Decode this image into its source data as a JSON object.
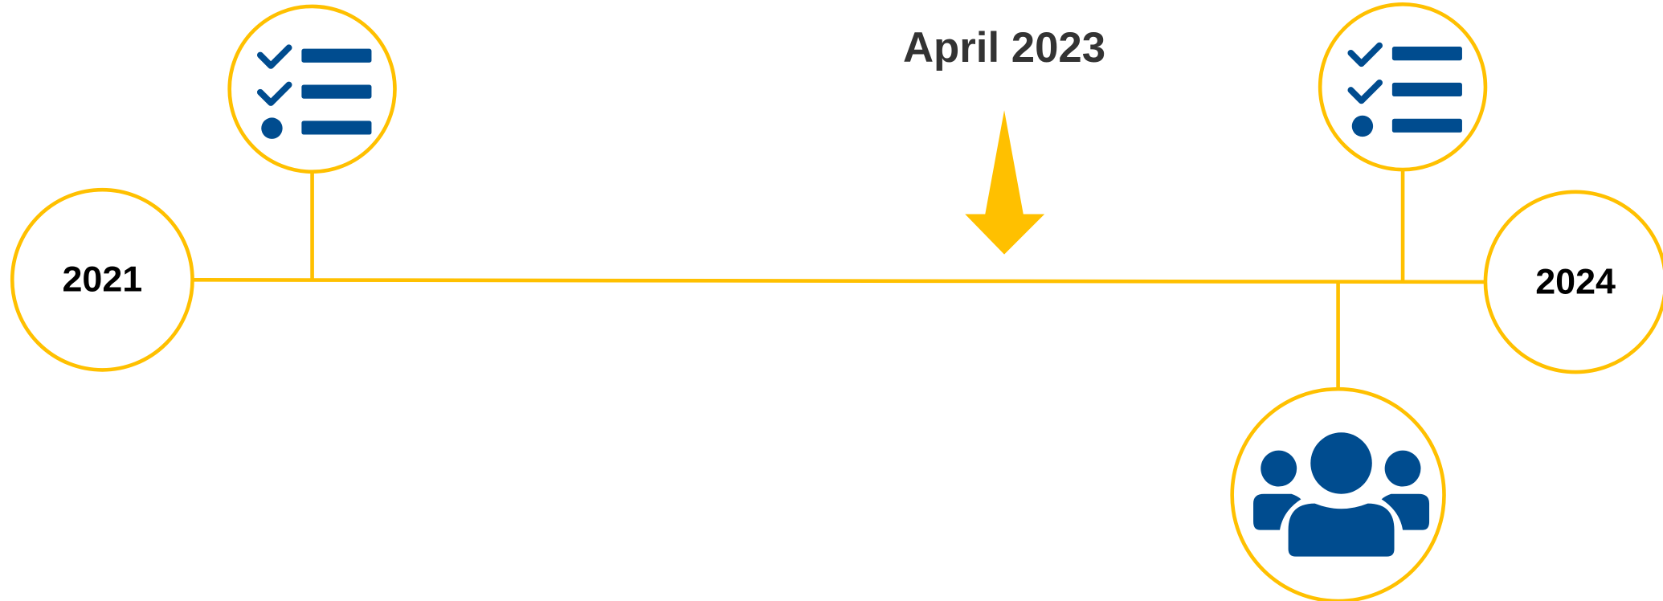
{
  "timeline": {
    "start": "2021",
    "end": "2024",
    "marker": "April 2023"
  }
}
